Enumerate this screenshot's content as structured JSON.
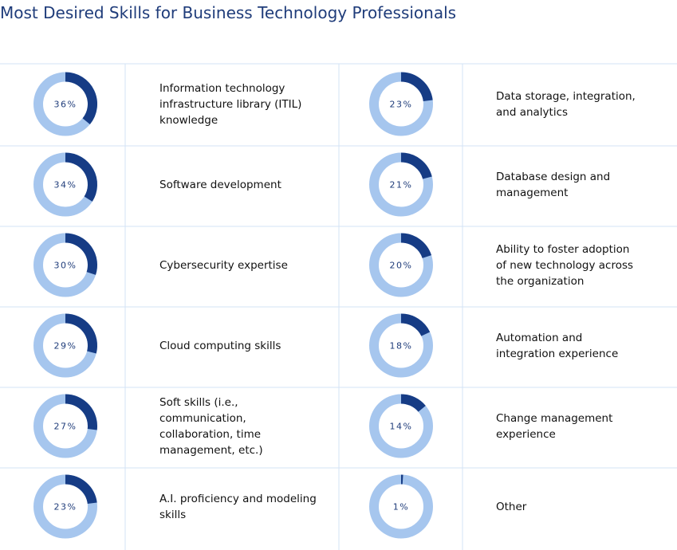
{
  "chart_data": {
    "type": "donut",
    "title": "Most Desired Skills for Business Technology Professionals",
    "categories": [
      "Information technology infrastructure library (ITIL) knowledge",
      "Software development",
      "Cybersecurity expertise",
      "Cloud computing skills",
      "Soft skills (i.e., communication, collaboration, time management, etc.)",
      "A.I. proficiency and modeling skills",
      "Data storage, integration, and analytics",
      "Database design and management",
      "Ability to foster adoption of new technology across the organization",
      "Automation and integration experience",
      "Change management experience",
      "Other"
    ],
    "values": [
      36,
      34,
      30,
      29,
      27,
      23,
      23,
      21,
      20,
      18,
      14,
      1
    ],
    "value_labels": [
      "36%",
      "34%",
      "30%",
      "29%",
      "27%",
      "23%",
      "23%",
      "21%",
      "20%",
      "18%",
      "14%",
      "1%"
    ],
    "color": "#163c85",
    "track_color": "#a6c6ee"
  }
}
